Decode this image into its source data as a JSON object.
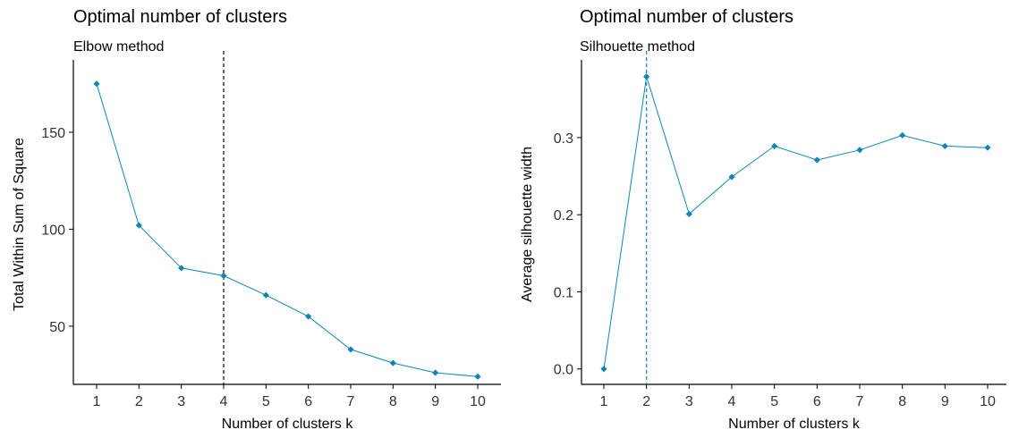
{
  "chart_data": [
    {
      "type": "line",
      "title": "Optimal number of clusters",
      "subtitle": "Elbow method",
      "xlabel": "Number of clusters k",
      "ylabel": "Total Within Sum of Square",
      "categories": [
        "1",
        "2",
        "3",
        "4",
        "5",
        "6",
        "7",
        "8",
        "9",
        "10"
      ],
      "values": [
        175,
        102,
        80,
        76,
        66,
        55,
        38,
        31,
        26,
        24
      ],
      "ylim": [
        20,
        185
      ],
      "yticks": [
        50,
        100,
        150
      ],
      "vline_at": "4",
      "vline_style": "dashed",
      "color": "#0e86b5",
      "vline_color": "#000000",
      "grid": false
    },
    {
      "type": "line",
      "title": "Optimal number of clusters",
      "subtitle": "Silhouette method",
      "xlabel": "Number of clusters k",
      "ylabel": "Average silhouette width",
      "categories": [
        "1",
        "2",
        "3",
        "4",
        "5",
        "6",
        "7",
        "8",
        "9",
        "10"
      ],
      "values": [
        0.0,
        0.379,
        0.201,
        0.249,
        0.289,
        0.271,
        0.284,
        0.303,
        0.289,
        0.287
      ],
      "ylim": [
        -0.02,
        0.395
      ],
      "yticks": [
        0.0,
        0.1,
        0.2,
        0.3
      ],
      "yticklabels": [
        "0.0",
        "0.1",
        "0.2",
        "0.3"
      ],
      "vline_at": "2",
      "vline_style": "dashed",
      "color": "#0e86b5",
      "vline_color": "#0e86b5",
      "grid": false
    }
  ]
}
